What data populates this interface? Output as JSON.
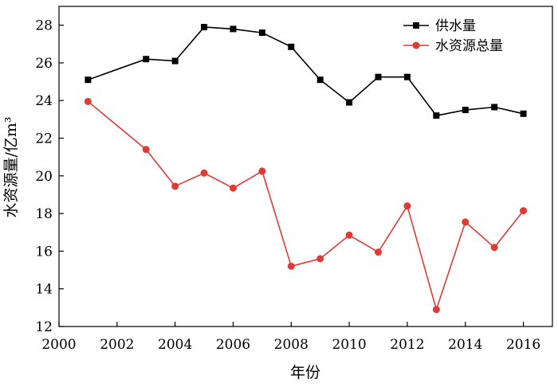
{
  "chart_data": {
    "type": "line",
    "xlabel": "年份",
    "ylabel": "水资源量/亿m³",
    "xlim": [
      2000,
      2017
    ],
    "ylim": [
      12,
      29
    ],
    "xticks": [
      2000,
      2002,
      2004,
      2006,
      2008,
      2010,
      2012,
      2014,
      2016
    ],
    "yticks": [
      12,
      14,
      16,
      18,
      20,
      22,
      24,
      26,
      28
    ],
    "legend_position": "top-right",
    "grid": false,
    "series": [
      {
        "name": "供水量",
        "color": "#000000",
        "marker": "square",
        "x": [
          2001,
          2003,
          2004,
          2005,
          2006,
          2007,
          2008,
          2009,
          2010,
          2011,
          2012,
          2013,
          2014,
          2015,
          2016
        ],
        "values": [
          25.1,
          26.2,
          26.1,
          27.9,
          27.8,
          27.6,
          26.85,
          25.1,
          23.9,
          25.25,
          25.25,
          23.2,
          23.5,
          23.65,
          23.3
        ]
      },
      {
        "name": "水资源总量",
        "color": "#e03a35",
        "marker": "circle",
        "x": [
          2001,
          2003,
          2004,
          2005,
          2006,
          2007,
          2008,
          2009,
          2010,
          2011,
          2012,
          2013,
          2014,
          2015,
          2016
        ],
        "values": [
          23.95,
          21.4,
          19.45,
          20.15,
          19.35,
          20.25,
          15.2,
          15.6,
          16.85,
          15.95,
          18.4,
          12.9,
          17.55,
          16.2,
          18.15
        ]
      }
    ]
  }
}
